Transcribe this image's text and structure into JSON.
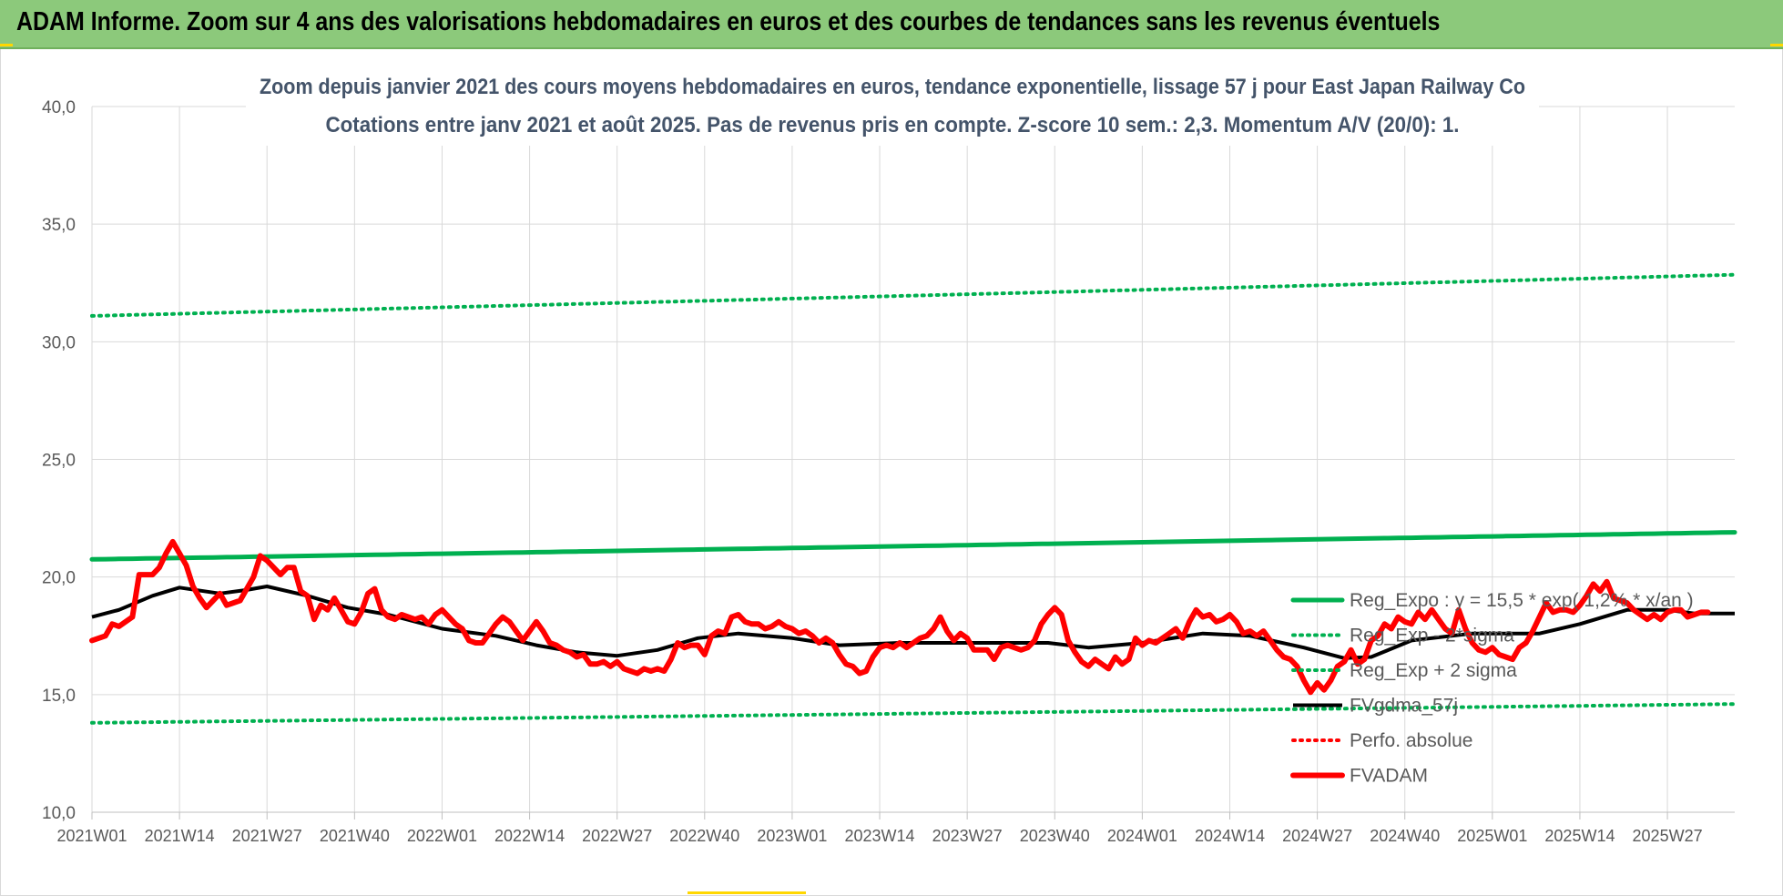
{
  "header": {
    "title": "ADAM Informe. Zoom sur 4 ans des valorisations hebdomadaires en euros et des courbes de tendances sans les revenus éventuels"
  },
  "colors": {
    "header_bg": "#8cc97b",
    "trend": "#00b050",
    "price": "#ff0000",
    "smooth": "#000000",
    "grid": "#d9d9d9"
  },
  "chart_data": {
    "type": "line",
    "title": "Zoom depuis janvier 2021 des cours moyens hebdomadaires en euros, tendance exponentielle, lissage 57 j pour East Japan Railway Co",
    "subtitle": "Cotations entre janv 2021 et août 2025.  Pas de revenus pris en compte. Z-score 10 sem.: 2,3. Momentum A/V (20/0): 1.",
    "xlabel": "",
    "ylabel": "",
    "ylim": [
      10,
      40
    ],
    "yticks": [
      "10,0",
      "15,0",
      "20,0",
      "25,0",
      "30,0",
      "35,0",
      "40,0"
    ],
    "ytick_values": [
      10,
      15,
      20,
      25,
      30,
      35,
      40
    ],
    "n_weeks": 245,
    "x_tick_weeks": [
      0,
      13,
      26,
      39,
      52,
      65,
      78,
      91,
      104,
      117,
      130,
      143,
      156,
      169,
      182,
      195,
      208,
      221,
      234
    ],
    "x_tick_labels": [
      "2021W01",
      "2021W14",
      "2021W27",
      "2021W40",
      "2022W01",
      "2022W14",
      "2022W27",
      "2022W40",
      "2023W01",
      "2023W14",
      "2023W27",
      "2023W40",
      "2024W01",
      "2024W14",
      "2024W27",
      "2024W40",
      "2025W01",
      "2025W14",
      "2025W27"
    ],
    "grid": true,
    "legend_position": "right",
    "series": [
      {
        "name": "Reg_Expo : y = 15,5 * exp( 1,2% * x/an )",
        "style": "solid-thick",
        "color": "#00b050",
        "start": 20.75,
        "end": 21.9
      },
      {
        "name": "Reg_Exp - 2*sigma",
        "style": "dotted",
        "color": "#00b050",
        "start": 13.8,
        "end": 14.6
      },
      {
        "name": "Reg_Exp + 2 sigma",
        "style": "dotted",
        "color": "#00b050",
        "start": 31.1,
        "end": 32.85
      },
      {
        "name": "FVgdma_57j",
        "style": "solid",
        "color": "#000000",
        "points": [
          [
            0,
            18.3
          ],
          [
            4,
            18.6
          ],
          [
            9,
            19.2
          ],
          [
            13,
            19.55
          ],
          [
            19,
            19.3
          ],
          [
            23,
            19.45
          ],
          [
            26,
            19.6
          ],
          [
            32,
            19.2
          ],
          [
            38,
            18.7
          ],
          [
            44,
            18.4
          ],
          [
            52,
            17.8
          ],
          [
            60,
            17.5
          ],
          [
            66,
            17.1
          ],
          [
            72,
            16.8
          ],
          [
            78,
            16.65
          ],
          [
            84,
            16.9
          ],
          [
            90,
            17.4
          ],
          [
            96,
            17.6
          ],
          [
            104,
            17.4
          ],
          [
            111,
            17.1
          ],
          [
            120,
            17.2
          ],
          [
            130,
            17.2
          ],
          [
            142,
            17.2
          ],
          [
            148,
            17.0
          ],
          [
            156,
            17.2
          ],
          [
            165,
            17.6
          ],
          [
            172,
            17.5
          ],
          [
            180,
            17.0
          ],
          [
            186,
            16.55
          ],
          [
            190,
            16.6
          ],
          [
            196,
            17.3
          ],
          [
            205,
            17.6
          ],
          [
            215,
            17.6
          ],
          [
            221,
            18.0
          ],
          [
            228,
            18.6
          ],
          [
            234,
            18.6
          ],
          [
            238,
            18.45
          ],
          [
            244,
            18.45
          ]
        ]
      },
      {
        "name": "Perfo. absolue",
        "style": "dotted",
        "color": "#ff0000",
        "points": []
      },
      {
        "name": "FVADAM",
        "style": "solid-thick",
        "color": "#ff0000",
        "points": [
          [
            0,
            17.3
          ],
          [
            2,
            17.5
          ],
          [
            3,
            18.0
          ],
          [
            4,
            17.9
          ],
          [
            6,
            18.3
          ],
          [
            7,
            20.1
          ],
          [
            8,
            20.1
          ],
          [
            9,
            20.1
          ],
          [
            10,
            20.4
          ],
          [
            11,
            21.0
          ],
          [
            12,
            21.5
          ],
          [
            13,
            21.0
          ],
          [
            14,
            20.5
          ],
          [
            15,
            19.6
          ],
          [
            16,
            19.1
          ],
          [
            17,
            18.7
          ],
          [
            18,
            19.0
          ],
          [
            19,
            19.3
          ],
          [
            20,
            18.8
          ],
          [
            22,
            19.0
          ],
          [
            24,
            20.0
          ],
          [
            25,
            20.9
          ],
          [
            26,
            20.7
          ],
          [
            27,
            20.4
          ],
          [
            28,
            20.1
          ],
          [
            29,
            20.4
          ],
          [
            30,
            20.4
          ],
          [
            31,
            19.4
          ],
          [
            32,
            19.2
          ],
          [
            33,
            18.2
          ],
          [
            34,
            18.8
          ],
          [
            35,
            18.6
          ],
          [
            36,
            19.1
          ],
          [
            37,
            18.6
          ],
          [
            38,
            18.1
          ],
          [
            39,
            18.0
          ],
          [
            40,
            18.5
          ],
          [
            41,
            19.3
          ],
          [
            42,
            19.5
          ],
          [
            43,
            18.6
          ],
          [
            44,
            18.3
          ],
          [
            45,
            18.2
          ],
          [
            46,
            18.4
          ],
          [
            47,
            18.3
          ],
          [
            48,
            18.2
          ],
          [
            49,
            18.3
          ],
          [
            50,
            18.0
          ],
          [
            51,
            18.4
          ],
          [
            52,
            18.6
          ],
          [
            53,
            18.3
          ],
          [
            54,
            18.0
          ],
          [
            55,
            17.8
          ],
          [
            56,
            17.3
          ],
          [
            57,
            17.2
          ],
          [
            58,
            17.2
          ],
          [
            59,
            17.6
          ],
          [
            60,
            18.0
          ],
          [
            61,
            18.3
          ],
          [
            62,
            18.1
          ],
          [
            63,
            17.7
          ],
          [
            64,
            17.3
          ],
          [
            65,
            17.7
          ],
          [
            66,
            18.1
          ],
          [
            67,
            17.7
          ],
          [
            68,
            17.2
          ],
          [
            69,
            17.1
          ],
          [
            70,
            16.9
          ],
          [
            71,
            16.8
          ],
          [
            72,
            16.6
          ],
          [
            73,
            16.7
          ],
          [
            74,
            16.3
          ],
          [
            75,
            16.3
          ],
          [
            76,
            16.4
          ],
          [
            77,
            16.2
          ],
          [
            78,
            16.4
          ],
          [
            79,
            16.1
          ],
          [
            80,
            16.0
          ],
          [
            81,
            15.9
          ],
          [
            82,
            16.1
          ],
          [
            83,
            16.0
          ],
          [
            84,
            16.1
          ],
          [
            85,
            16.0
          ],
          [
            86,
            16.5
          ],
          [
            87,
            17.2
          ],
          [
            88,
            17.0
          ],
          [
            89,
            17.1
          ],
          [
            90,
            17.1
          ],
          [
            91,
            16.7
          ],
          [
            92,
            17.5
          ],
          [
            93,
            17.7
          ],
          [
            94,
            17.6
          ],
          [
            95,
            18.3
          ],
          [
            96,
            18.4
          ],
          [
            97,
            18.1
          ],
          [
            98,
            18.0
          ],
          [
            99,
            18.0
          ],
          [
            100,
            17.8
          ],
          [
            101,
            17.9
          ],
          [
            102,
            18.1
          ],
          [
            103,
            17.9
          ],
          [
            104,
            17.8
          ],
          [
            105,
            17.6
          ],
          [
            106,
            17.7
          ],
          [
            107,
            17.5
          ],
          [
            108,
            17.2
          ],
          [
            109,
            17.4
          ],
          [
            110,
            17.2
          ],
          [
            111,
            16.7
          ],
          [
            112,
            16.3
          ],
          [
            113,
            16.2
          ],
          [
            114,
            15.9
          ],
          [
            115,
            16.0
          ],
          [
            116,
            16.6
          ],
          [
            117,
            17.0
          ],
          [
            118,
            17.1
          ],
          [
            119,
            17.0
          ],
          [
            120,
            17.2
          ],
          [
            121,
            17.0
          ],
          [
            122,
            17.2
          ],
          [
            123,
            17.4
          ],
          [
            124,
            17.5
          ],
          [
            125,
            17.8
          ],
          [
            126,
            18.3
          ],
          [
            127,
            17.7
          ],
          [
            128,
            17.3
          ],
          [
            129,
            17.6
          ],
          [
            130,
            17.4
          ],
          [
            131,
            16.9
          ],
          [
            132,
            16.9
          ],
          [
            133,
            16.9
          ],
          [
            134,
            16.5
          ],
          [
            135,
            17.0
          ],
          [
            136,
            17.1
          ],
          [
            137,
            17.0
          ],
          [
            138,
            16.9
          ],
          [
            139,
            17.0
          ],
          [
            140,
            17.3
          ],
          [
            141,
            18.0
          ],
          [
            142,
            18.4
          ],
          [
            143,
            18.7
          ],
          [
            144,
            18.4
          ],
          [
            145,
            17.3
          ],
          [
            146,
            16.8
          ],
          [
            147,
            16.4
          ],
          [
            148,
            16.2
          ],
          [
            149,
            16.5
          ],
          [
            150,
            16.3
          ],
          [
            151,
            16.1
          ],
          [
            152,
            16.6
          ],
          [
            153,
            16.3
          ],
          [
            154,
            16.5
          ],
          [
            155,
            17.4
          ],
          [
            156,
            17.1
          ],
          [
            157,
            17.3
          ],
          [
            158,
            17.2
          ],
          [
            159,
            17.4
          ],
          [
            160,
            17.6
          ],
          [
            161,
            17.8
          ],
          [
            162,
            17.4
          ],
          [
            163,
            18.1
          ],
          [
            164,
            18.6
          ],
          [
            165,
            18.3
          ],
          [
            166,
            18.4
          ],
          [
            167,
            18.1
          ],
          [
            168,
            18.2
          ],
          [
            169,
            18.4
          ],
          [
            170,
            18.1
          ],
          [
            171,
            17.6
          ],
          [
            172,
            17.7
          ],
          [
            173,
            17.5
          ],
          [
            174,
            17.7
          ],
          [
            175,
            17.3
          ],
          [
            176,
            16.9
          ],
          [
            177,
            16.6
          ],
          [
            178,
            16.5
          ],
          [
            179,
            16.2
          ],
          [
            180,
            15.6
          ],
          [
            181,
            15.1
          ],
          [
            182,
            15.5
          ],
          [
            183,
            15.2
          ],
          [
            184,
            15.6
          ],
          [
            185,
            16.2
          ],
          [
            186,
            16.4
          ],
          [
            187,
            16.9
          ],
          [
            188,
            16.3
          ],
          [
            189,
            16.5
          ],
          [
            190,
            17.3
          ],
          [
            191,
            17.5
          ],
          [
            192,
            18.0
          ],
          [
            193,
            17.8
          ],
          [
            194,
            18.3
          ],
          [
            195,
            18.1
          ],
          [
            196,
            18.0
          ],
          [
            197,
            18.5
          ],
          [
            198,
            18.2
          ],
          [
            199,
            18.6
          ],
          [
            200,
            18.2
          ],
          [
            201,
            17.8
          ],
          [
            202,
            17.6
          ],
          [
            203,
            18.6
          ],
          [
            204,
            17.8
          ],
          [
            205,
            17.2
          ],
          [
            206,
            16.9
          ],
          [
            207,
            16.8
          ],
          [
            208,
            17.0
          ],
          [
            209,
            16.7
          ],
          [
            210,
            16.6
          ],
          [
            211,
            16.5
          ],
          [
            212,
            17.0
          ],
          [
            213,
            17.2
          ],
          [
            214,
            17.7
          ],
          [
            215,
            18.3
          ],
          [
            216,
            18.9
          ],
          [
            217,
            18.5
          ],
          [
            218,
            18.6
          ],
          [
            219,
            18.6
          ],
          [
            220,
            18.5
          ],
          [
            221,
            18.8
          ],
          [
            222,
            19.2
          ],
          [
            223,
            19.7
          ],
          [
            224,
            19.4
          ],
          [
            225,
            19.8
          ],
          [
            226,
            19.1
          ],
          [
            227,
            19.0
          ],
          [
            228,
            18.9
          ],
          [
            229,
            18.6
          ],
          [
            230,
            18.4
          ],
          [
            231,
            18.2
          ],
          [
            232,
            18.4
          ],
          [
            233,
            18.2
          ],
          [
            234,
            18.5
          ],
          [
            235,
            18.6
          ],
          [
            236,
            18.6
          ],
          [
            237,
            18.3
          ],
          [
            238,
            18.4
          ],
          [
            239,
            18.5
          ],
          [
            240,
            18.5
          ]
        ]
      }
    ]
  }
}
